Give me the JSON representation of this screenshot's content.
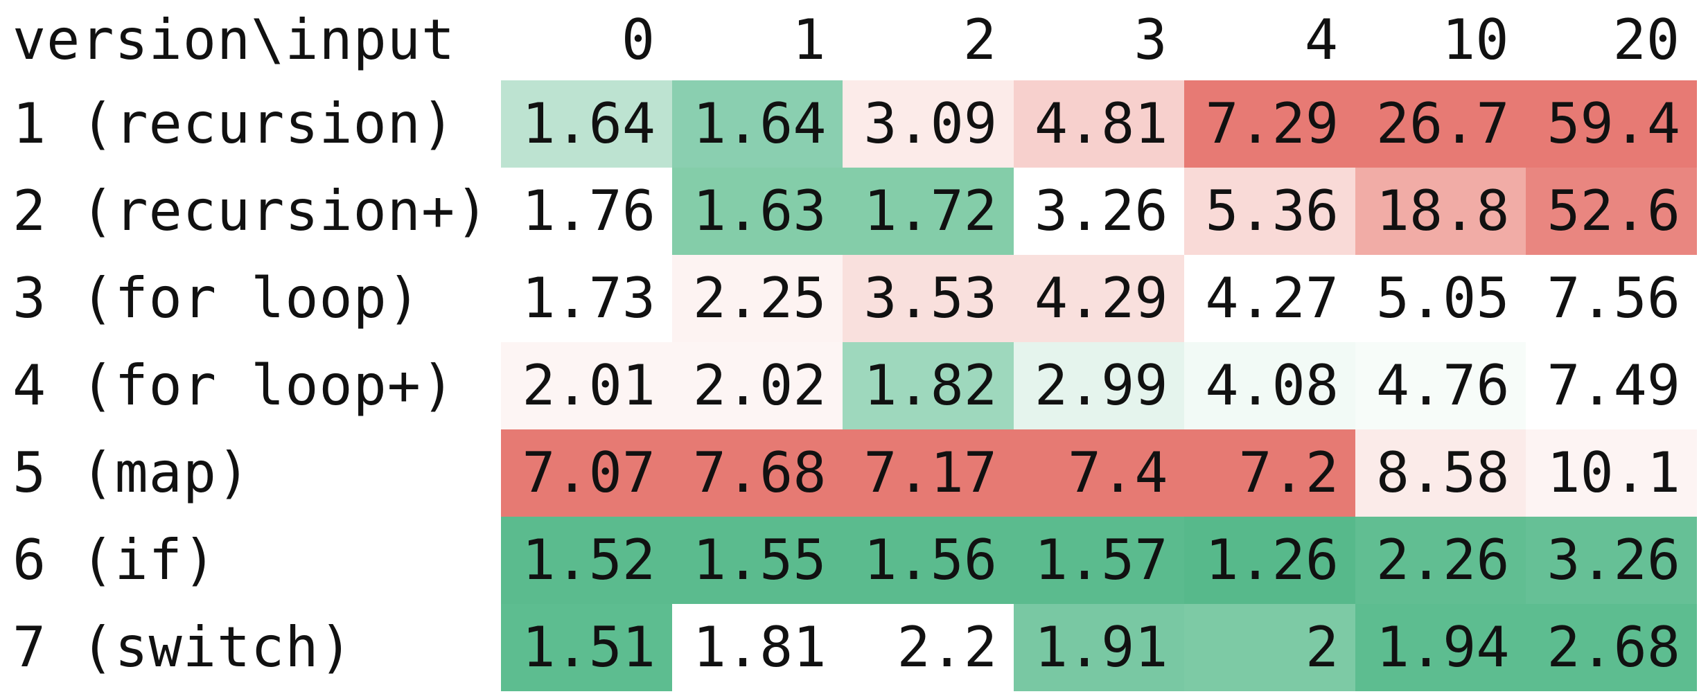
{
  "chart_data": {
    "type": "heatmap",
    "corner_label": "version\\input",
    "columns": [
      "0",
      "1",
      "2",
      "3",
      "4",
      "10",
      "20"
    ],
    "rows": [
      {
        "label": "1 (recursion)",
        "values": [
          "1.64",
          "1.64",
          "3.09",
          "4.81",
          "7.29",
          "26.7",
          "59.4"
        ],
        "colors": [
          "#bde3d1",
          "#8acfb0",
          "#fcebe9",
          "#f7d0cd",
          "#e77a74",
          "#e77a74",
          "#e77a74"
        ]
      },
      {
        "label": "2 (recursion+)",
        "values": [
          "1.76",
          "1.63",
          "1.72",
          "3.26",
          "5.36",
          "18.8",
          "52.6"
        ],
        "colors": [
          "#ffffff",
          "#84cda9",
          "#84cda9",
          "#ffffff",
          "#f9dad7",
          "#f1aca6",
          "#e98680"
        ]
      },
      {
        "label": "3 (for loop)",
        "values": [
          "1.73",
          "2.25",
          "3.53",
          "4.29",
          "4.27",
          "5.05",
          "7.56"
        ],
        "colors": [
          "#ffffff",
          "#fdf3f2",
          "#f9e0dd",
          "#f9e0dd",
          "#ffffff",
          "#ffffff",
          "#ffffff"
        ]
      },
      {
        "label": "4 (for loop+)",
        "values": [
          "2.01",
          "2.02",
          "1.82",
          "2.99",
          "4.08",
          "4.76",
          "7.49"
        ],
        "colors": [
          "#fdf5f4",
          "#fdf5f4",
          "#9ed8bd",
          "#e5f4ed",
          "#f2faf6",
          "#f7fcf9",
          "#ffffff"
        ]
      },
      {
        "label": "5 (map)",
        "values": [
          "7.07",
          "7.68",
          "7.17",
          "7.4",
          "7.2",
          "8.58",
          "10.1"
        ],
        "colors": [
          "#e67a73",
          "#e67a73",
          "#e67a73",
          "#e67a73",
          "#e67a73",
          "#fbebe9",
          "#fdf4f3"
        ]
      },
      {
        "label": "6 (if)",
        "values": [
          "1.52",
          "1.55",
          "1.56",
          "1.57",
          "1.26",
          "2.26",
          "3.26"
        ],
        "colors": [
          "#5bbb8e",
          "#5bbb8e",
          "#5bbb8e",
          "#5bbb8e",
          "#57b98b",
          "#61be92",
          "#66c096"
        ]
      },
      {
        "label": "7 (switch)",
        "values": [
          "1.51",
          "1.81",
          "2.2",
          "1.91",
          "2",
          "1.94",
          "2.68"
        ],
        "colors": [
          "#5dbd90",
          "#ffffff",
          "#ffffff",
          "#79c8a3",
          "#7dcaa5",
          "#5dbd90",
          "#5dbd90"
        ]
      }
    ]
  }
}
